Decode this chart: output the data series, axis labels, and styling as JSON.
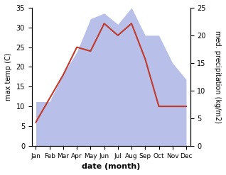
{
  "months": [
    "Jan",
    "Feb",
    "Mar",
    "Apr",
    "May",
    "Jun",
    "Jul",
    "Aug",
    "Sep",
    "Oct",
    "Nov",
    "Dec"
  ],
  "temperature": [
    6,
    12,
    18,
    25,
    24,
    31,
    28,
    31,
    22,
    10,
    10,
    10
  ],
  "precipitation": [
    8,
    8,
    13,
    17,
    23,
    24,
    22,
    25,
    20,
    20,
    15,
    12
  ],
  "temp_color": "#c0392b",
  "precip_color_fill": "#b8bfe8",
  "temp_ylim": [
    0,
    35
  ],
  "precip_ylim": [
    0,
    25
  ],
  "precip_scale_factor": 1.4,
  "xlabel": "date (month)",
  "ylabel_left": "max temp (C)",
  "ylabel_right": "med. precipitation (kg/m2)",
  "yticks_left": [
    0,
    5,
    10,
    15,
    20,
    25,
    30,
    35
  ],
  "yticks_right": [
    0,
    5,
    10,
    15,
    20,
    25
  ],
  "bg_color": "#ffffff"
}
